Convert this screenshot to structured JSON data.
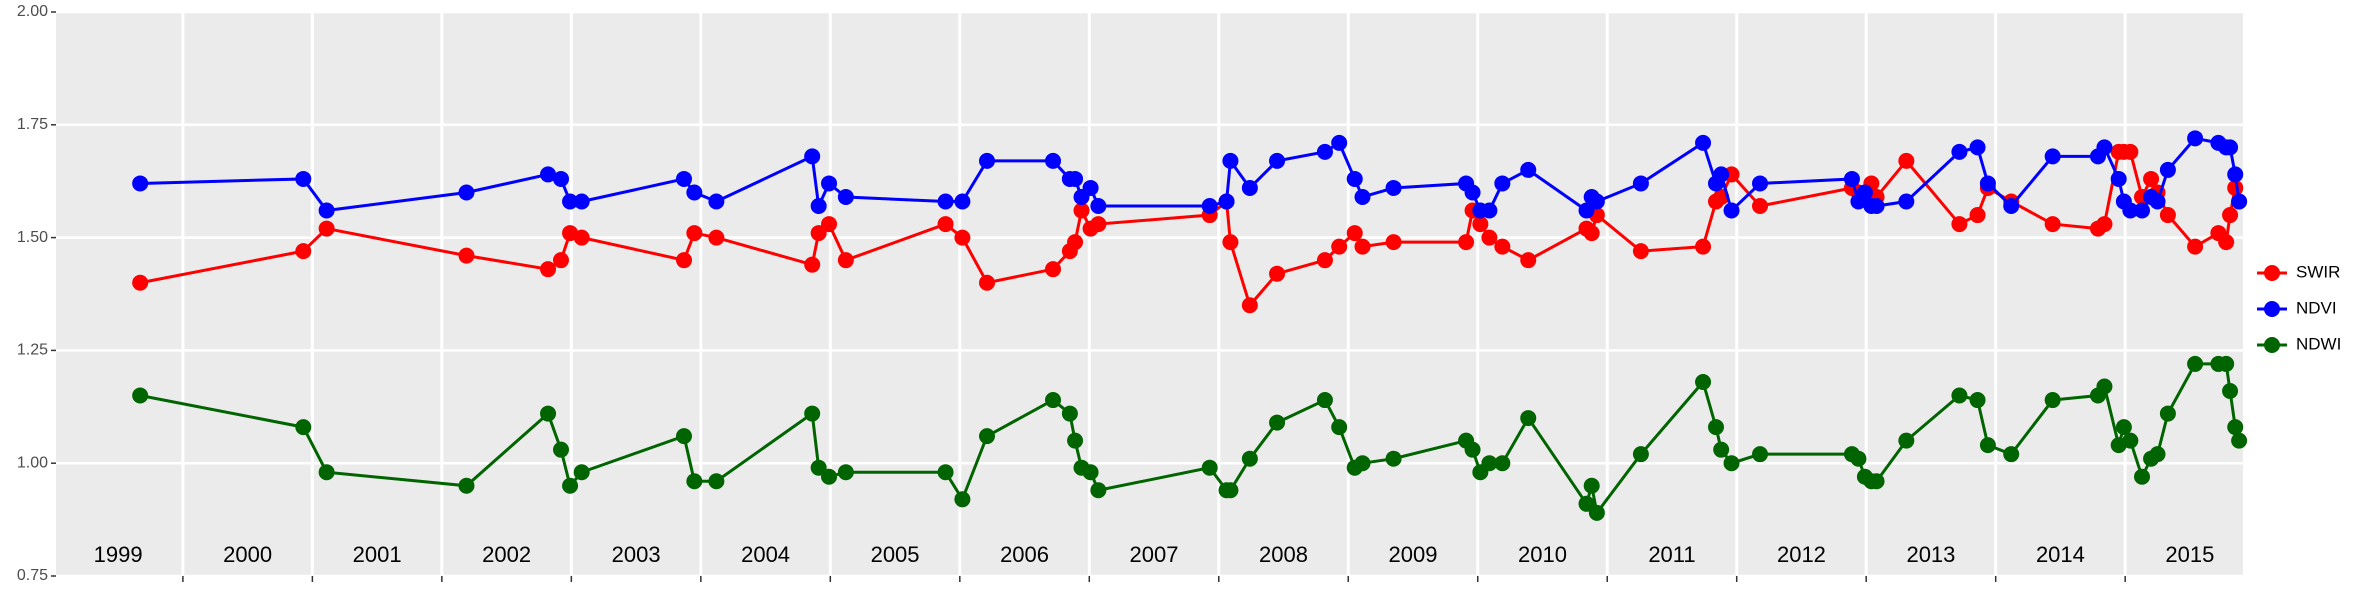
{
  "chart_data": {
    "type": "line",
    "x": [
      1999.67,
      2000.93,
      2001.11,
      2002.19,
      2002.82,
      2002.92,
      2002.99,
      2003.08,
      2003.87,
      2003.95,
      2004.12,
      2004.86,
      2004.91,
      2004.99,
      2005.12,
      2005.89,
      2006.02,
      2006.21,
      2006.72,
      2006.85,
      2006.89,
      2006.94,
      2007.01,
      2007.07,
      2007.93,
      2008.06,
      2008.09,
      2008.24,
      2008.45,
      2008.82,
      2008.93,
      2009.05,
      2009.11,
      2009.35,
      2009.91,
      2009.96,
      2010.02,
      2010.09,
      2010.19,
      2010.39,
      2010.84,
      2010.88,
      2010.92,
      2011.26,
      2011.74,
      2011.84,
      2011.88,
      2011.96,
      2012.18,
      2012.89,
      2012.94,
      2012.99,
      2013.04,
      2013.08,
      2013.31,
      2013.72,
      2013.86,
      2013.94,
      2014.12,
      2014.44,
      2014.79,
      2014.84,
      2014.95,
      2014.99,
      2015.04,
      2015.13,
      2015.2,
      2015.25,
      2015.33,
      2015.54,
      2015.72,
      2015.78,
      2015.81,
      2015.85,
      2015.88
    ],
    "series": [
      {
        "name": "SWIR",
        "color": "#ff0000",
        "values": [
          1.4,
          1.47,
          1.52,
          1.46,
          1.43,
          1.45,
          1.51,
          1.5,
          1.45,
          1.51,
          1.5,
          1.44,
          1.51,
          1.53,
          1.45,
          1.53,
          1.5,
          1.4,
          1.43,
          1.47,
          1.49,
          1.56,
          1.52,
          1.53,
          1.55,
          1.58,
          1.49,
          1.35,
          1.42,
          1.45,
          1.48,
          1.51,
          1.48,
          1.49,
          1.49,
          1.56,
          1.53,
          1.5,
          1.48,
          1.45,
          1.52,
          1.51,
          1.55,
          1.47,
          1.48,
          1.58,
          1.59,
          1.64,
          1.57,
          1.61,
          1.6,
          1.59,
          1.62,
          1.59,
          1.67,
          1.53,
          1.55,
          1.61,
          1.58,
          1.53,
          1.52,
          1.53,
          1.69,
          1.69,
          1.69,
          1.59,
          1.63,
          1.6,
          1.55,
          1.48,
          1.51,
          1.49,
          1.55,
          1.61,
          1.58
        ]
      },
      {
        "name": "NDVI",
        "color": "#0000ff",
        "values": [
          1.62,
          1.63,
          1.56,
          1.6,
          1.64,
          1.63,
          1.58,
          1.58,
          1.63,
          1.6,
          1.58,
          1.68,
          1.57,
          1.62,
          1.59,
          1.58,
          1.58,
          1.67,
          1.67,
          1.63,
          1.63,
          1.59,
          1.61,
          1.57,
          1.57,
          1.58,
          1.67,
          1.61,
          1.67,
          1.69,
          1.71,
          1.63,
          1.59,
          1.61,
          1.62,
          1.6,
          1.56,
          1.56,
          1.62,
          1.65,
          1.56,
          1.59,
          1.58,
          1.62,
          1.71,
          1.62,
          1.64,
          1.56,
          1.62,
          1.63,
          1.58,
          1.6,
          1.57,
          1.57,
          1.58,
          1.69,
          1.7,
          1.62,
          1.57,
          1.68,
          1.68,
          1.7,
          1.63,
          1.58,
          1.56,
          1.56,
          1.59,
          1.58,
          1.65,
          1.72,
          1.71,
          1.7,
          1.7,
          1.64,
          1.58
        ]
      },
      {
        "name": "NDWI",
        "color": "#006400",
        "values": [
          1.15,
          1.08,
          0.98,
          0.95,
          1.11,
          1.03,
          0.95,
          0.98,
          1.06,
          0.96,
          0.96,
          1.11,
          0.99,
          0.97,
          0.98,
          0.98,
          0.92,
          1.06,
          1.14,
          1.11,
          1.05,
          0.99,
          0.98,
          0.94,
          0.99,
          0.94,
          0.94,
          1.01,
          1.09,
          1.14,
          1.08,
          0.99,
          1.0,
          1.01,
          1.05,
          1.03,
          0.98,
          1.0,
          1.0,
          1.1,
          0.91,
          0.95,
          0.89,
          1.02,
          1.18,
          1.08,
          1.03,
          1.0,
          1.02,
          1.02,
          1.01,
          0.97,
          0.96,
          0.96,
          1.05,
          1.15,
          1.14,
          1.04,
          1.02,
          1.14,
          1.15,
          1.17,
          1.04,
          1.08,
          1.05,
          0.97,
          1.01,
          1.02,
          1.11,
          1.22,
          1.22,
          1.22,
          1.16,
          1.08,
          1.05
        ]
      }
    ],
    "xlim": [
      1999.02,
      2015.91
    ],
    "xgrid": [
      2000,
      2001,
      2002,
      2003,
      2004,
      2005,
      2006,
      2007,
      2008,
      2009,
      2010,
      2011,
      2012,
      2013,
      2014,
      2015
    ],
    "xticks": [
      {
        "value": 1999.5,
        "label": "1999"
      },
      {
        "value": 2000.5,
        "label": "2000"
      },
      {
        "value": 2001.5,
        "label": "2001"
      },
      {
        "value": 2002.5,
        "label": "2002"
      },
      {
        "value": 2003.5,
        "label": "2003"
      },
      {
        "value": 2004.5,
        "label": "2004"
      },
      {
        "value": 2005.5,
        "label": "2005"
      },
      {
        "value": 2006.5,
        "label": "2006"
      },
      {
        "value": 2007.5,
        "label": "2007"
      },
      {
        "value": 2008.5,
        "label": "2008"
      },
      {
        "value": 2009.5,
        "label": "2009"
      },
      {
        "value": 2010.5,
        "label": "2010"
      },
      {
        "value": 2011.5,
        "label": "2011"
      },
      {
        "value": 2012.5,
        "label": "2012"
      },
      {
        "value": 2013.5,
        "label": "2013"
      },
      {
        "value": 2014.5,
        "label": "2014"
      },
      {
        "value": 2015.5,
        "label": "2015"
      }
    ],
    "ylim": [
      0.75,
      2.0
    ],
    "yticks": [
      {
        "value": 0.75,
        "label": "0.75"
      },
      {
        "value": 1.0,
        "label": "1.00"
      },
      {
        "value": 1.25,
        "label": "1.25"
      },
      {
        "value": 1.5,
        "label": "1.50"
      },
      {
        "value": 1.75,
        "label": "1.75"
      },
      {
        "value": 2.0,
        "label": "2.00"
      }
    ],
    "grid": true,
    "legend": "right"
  }
}
